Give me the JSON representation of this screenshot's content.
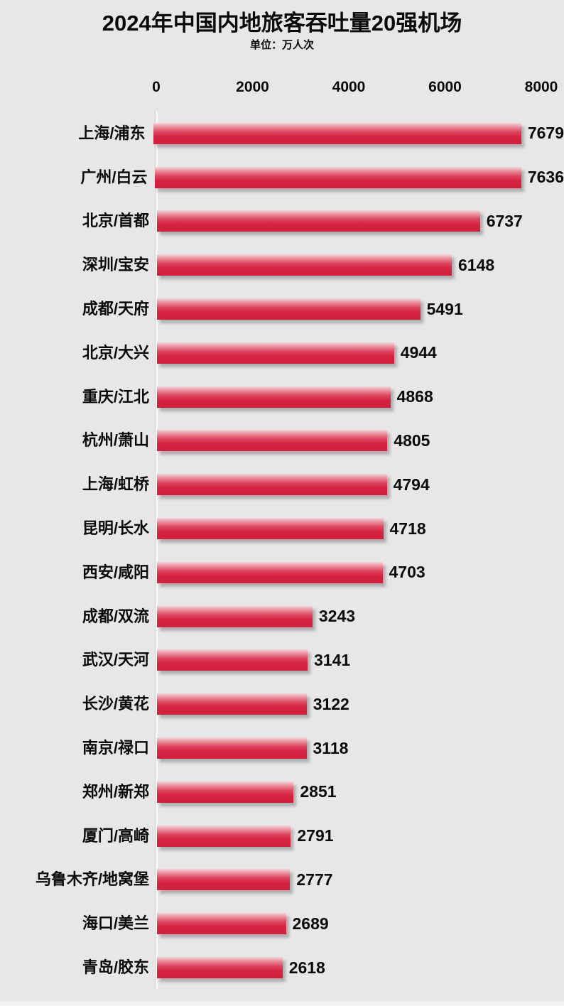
{
  "title": "2024年中国内地旅客吞吐量20强机场",
  "subtitle": "单位：万人次",
  "colors": {
    "background": "#e7e7e7",
    "text": "#0a0a0a",
    "axis_line": "#f6f6f6",
    "bar_gradient_top": "#f2d4d6",
    "bar_gradient_upper": "#ea93a0",
    "bar_gradient_mid": "#dd4560",
    "bar_gradient_lower": "#d52441",
    "bar_gradient_bottom": "#d01f3c"
  },
  "axis": {
    "ticks": [
      "0",
      "2000",
      "4000",
      "6000",
      "8000"
    ],
    "min": 0,
    "max": 8000
  },
  "chart_data": {
    "type": "bar",
    "orientation": "horizontal",
    "title": "2024年中国内地旅客吞吐量20强机场",
    "subtitle": "单位：万人次",
    "unit": "万人次",
    "xlabel": "",
    "ylabel": "",
    "xlim": [
      0,
      8000
    ],
    "grid": false,
    "legend": false,
    "categories": [
      "上海/浦东",
      "广州/白云",
      "北京/首都",
      "深圳/宝安",
      "成都/天府",
      "北京/大兴",
      "重庆/江北",
      "杭州/萧山",
      "上海/虹桥",
      "昆明/长水",
      "西安/咸阳",
      "成都/双流",
      "武汉/天河",
      "长沙/黄花",
      "南京/禄口",
      "郑州/新郑",
      "厦门/高崎",
      "乌鲁木齐/地窝堡",
      "海口/美兰",
      "青岛/胶东"
    ],
    "values": [
      7679,
      7636,
      6737,
      6148,
      5491,
      4944,
      4868,
      4805,
      4794,
      4718,
      4703,
      3243,
      3141,
      3122,
      3118,
      2851,
      2791,
      2777,
      2689,
      2618
    ]
  }
}
